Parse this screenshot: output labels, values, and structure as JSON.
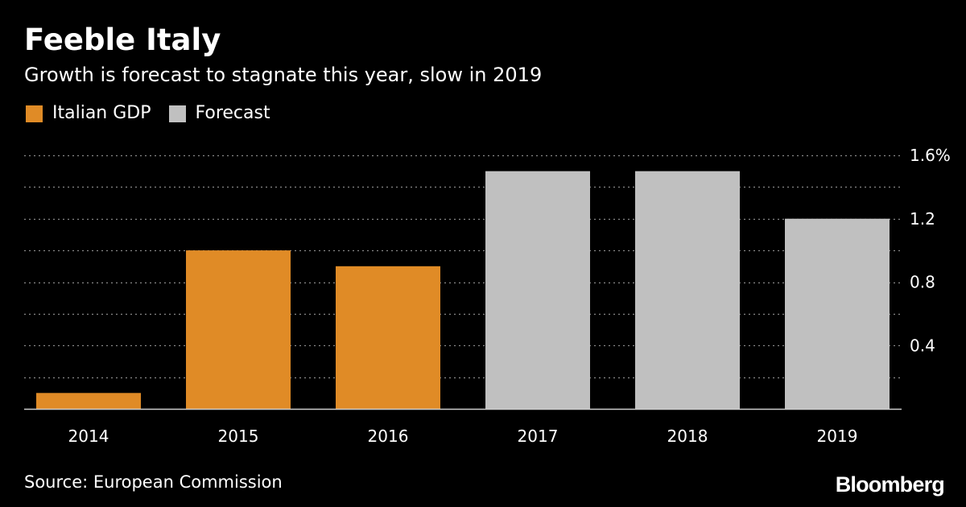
{
  "header": {
    "title": "Feeble Italy",
    "subtitle": "Growth is forecast to stagnate this year, slow in 2019"
  },
  "legend": {
    "items": [
      {
        "label": "Italian GDP",
        "color": "#e08b26"
      },
      {
        "label": "Forecast",
        "color": "#c0c0c0"
      }
    ]
  },
  "footer": {
    "source": "Source: European Commission",
    "logo": "Bloomberg"
  },
  "colors": {
    "background": "#000000",
    "actual": "#e08b26",
    "forecast": "#c0c0c0",
    "grid": "#888888",
    "text": "#ffffff"
  },
  "chart_data": {
    "type": "bar",
    "title": "Feeble Italy",
    "subtitle": "Growth is forecast to stagnate this year, slow in 2019",
    "xlabel": "",
    "ylabel": "",
    "categories": [
      "2014",
      "2015",
      "2016",
      "2017",
      "2018",
      "2019"
    ],
    "values": [
      0.1,
      1.0,
      0.9,
      1.5,
      1.5,
      1.2
    ],
    "series_kind": [
      "Italian GDP",
      "Italian GDP",
      "Italian GDP",
      "Forecast",
      "Forecast",
      "Forecast"
    ],
    "ylim": [
      0,
      1.6
    ],
    "yticks": [
      {
        "value": 1.6,
        "label": "1.6%"
      },
      {
        "value": 1.2,
        "label": "1.2"
      },
      {
        "value": 0.8,
        "label": "0.8"
      },
      {
        "value": 0.4,
        "label": "0.4"
      }
    ],
    "gridlines": [
      0.2,
      0.4,
      0.6,
      0.8,
      1.0,
      1.2,
      1.4,
      1.6
    ],
    "grid": true,
    "y_axis_side": "right",
    "legend_position": "top-left"
  }
}
